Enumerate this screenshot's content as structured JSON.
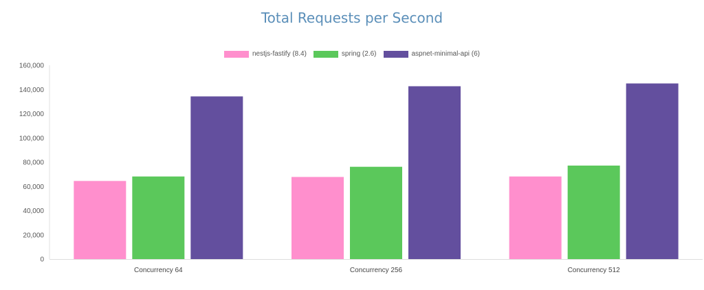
{
  "chart_data": {
    "type": "bar",
    "title": "Total Requests per Second",
    "categories": [
      "Concurrency 64",
      "Concurrency 256",
      "Concurrency 512"
    ],
    "series": [
      {
        "name": "nestjs-fastify (8.4)",
        "color": "#ff8fcd",
        "values": [
          64500,
          67800,
          68200
        ]
      },
      {
        "name": "spring (2.6)",
        "color": "#5bc85b",
        "values": [
          68200,
          76200,
          77200
        ]
      },
      {
        "name": "aspnet-minimal-api (6)",
        "color": "#634f9e",
        "values": [
          134300,
          142700,
          145000
        ]
      }
    ],
    "yticks": [
      "0",
      "20,000",
      "40,000",
      "60,000",
      "80,000",
      "100,000",
      "120,000",
      "140,000",
      "160,000"
    ],
    "ylim": [
      0,
      160000
    ],
    "grid": false,
    "legend_position": "top-center"
  }
}
